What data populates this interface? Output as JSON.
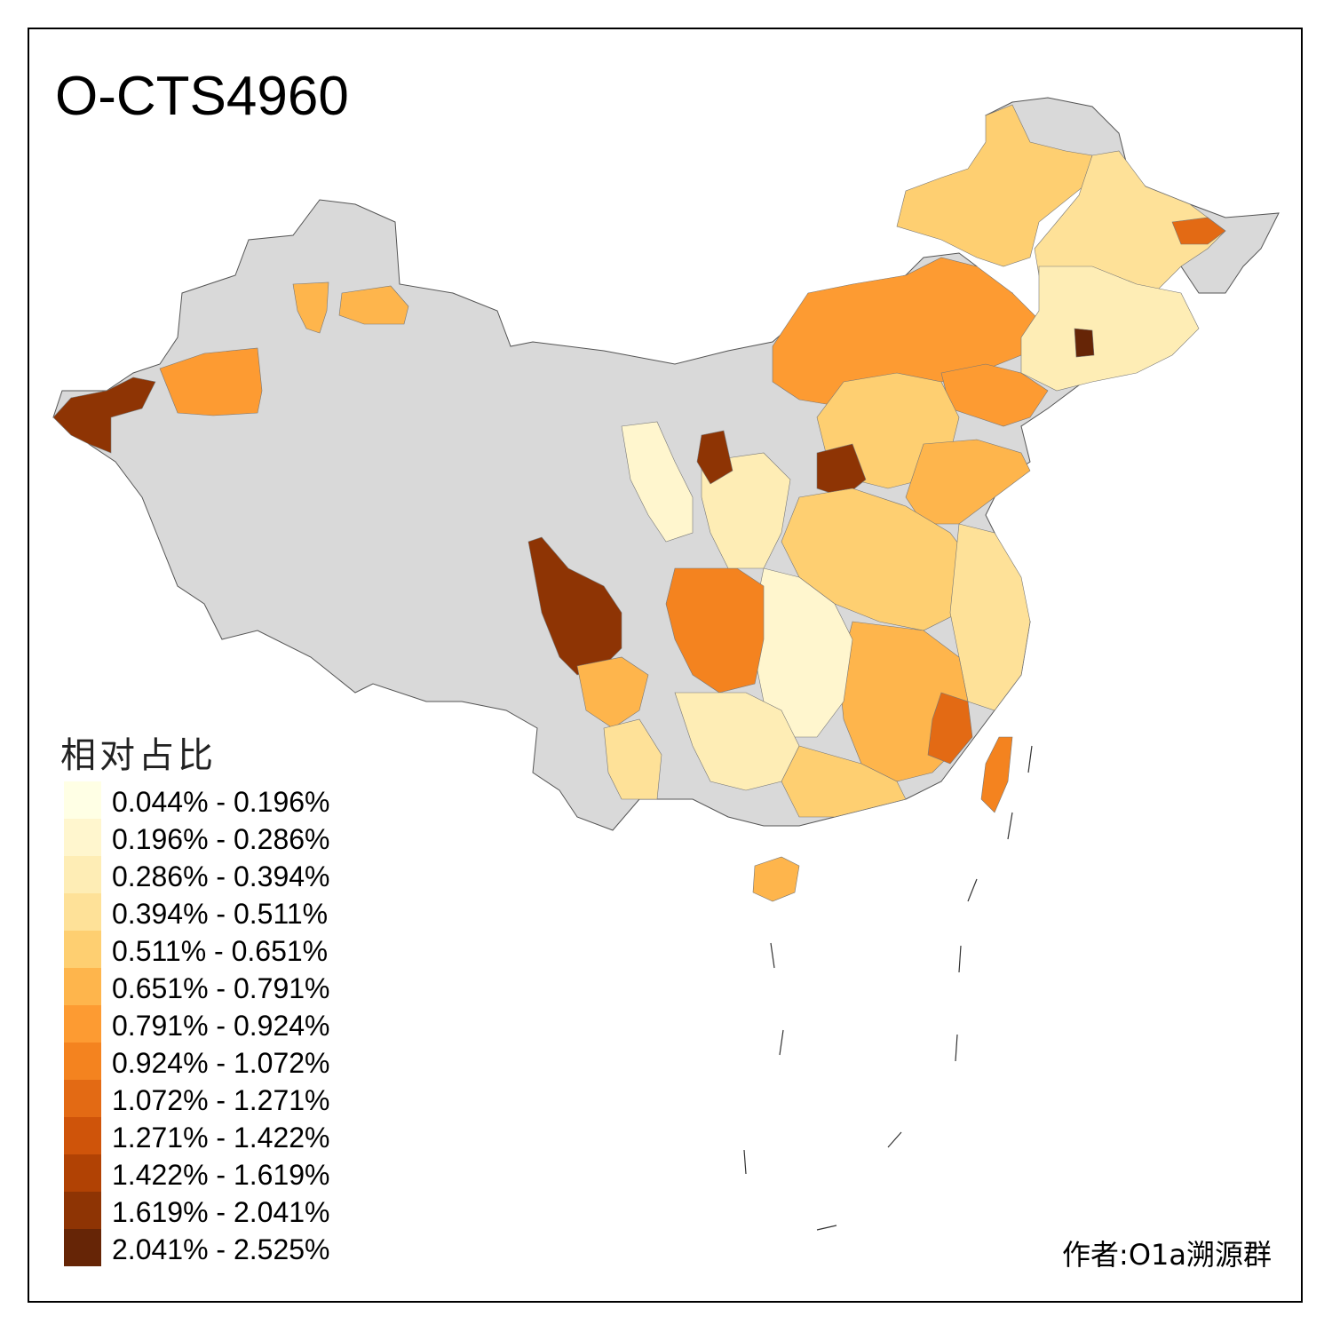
{
  "title": "O-CTS4960",
  "legend": {
    "title": "相对占比",
    "items": [
      {
        "label": "0.044% - 0.196%",
        "color": "#FFFFE5"
      },
      {
        "label": "0.196% - 0.286%",
        "color": "#FFF6CE"
      },
      {
        "label": "0.286% - 0.394%",
        "color": "#FEEDB5"
      },
      {
        "label": "0.394% - 0.511%",
        "color": "#FEE198"
      },
      {
        "label": "0.511% - 0.651%",
        "color": "#FECF71"
      },
      {
        "label": "0.651% - 0.791%",
        "color": "#FEB54C"
      },
      {
        "label": "0.791% - 0.924%",
        "color": "#FD9B32"
      },
      {
        "label": "0.924% - 1.072%",
        "color": "#F4831F"
      },
      {
        "label": "1.072% - 1.271%",
        "color": "#E36A14"
      },
      {
        "label": "1.271% - 1.422%",
        "color": "#CF540A"
      },
      {
        "label": "1.422% - 1.619%",
        "color": "#B14204"
      },
      {
        "label": "1.619% - 2.041%",
        "color": "#8E3404"
      },
      {
        "label": "2.041% - 2.525%",
        "color": "#662506"
      }
    ]
  },
  "author": "作者:O1a溯源群",
  "colors": {
    "no_data": "#D9D9D9",
    "border": "#555555",
    "frame": "#000000"
  }
}
